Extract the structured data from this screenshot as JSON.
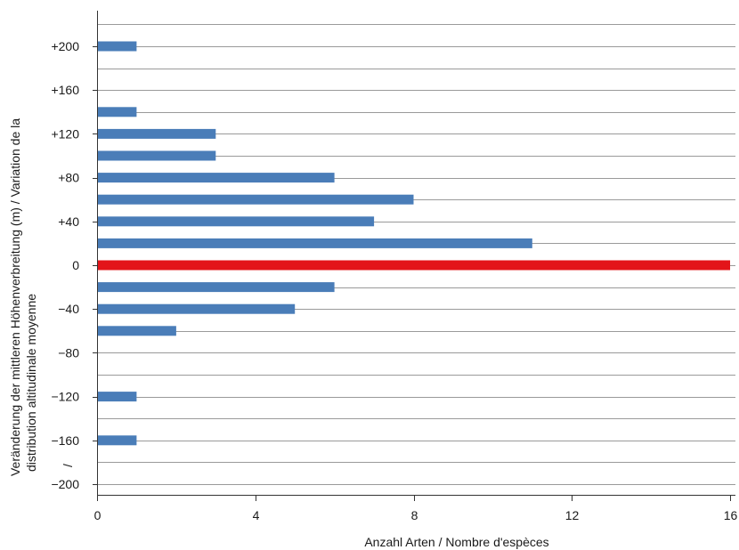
{
  "chart_data": {
    "type": "bar",
    "orientation": "horizontal",
    "xlabel": "Anzahl Arten / Nombre d'espèces",
    "ylabel_line1": "Veränderung der mittleren Höhenverbreitung (m) / Variation de la",
    "ylabel_line2": "distribution altitudinale moyenne",
    "ylabel_slash": "/",
    "xlim": [
      0,
      16
    ],
    "x_ticks": [
      {
        "value": 0,
        "label": "0"
      },
      {
        "value": 4,
        "label": "4"
      },
      {
        "value": 8,
        "label": "8"
      },
      {
        "value": 12,
        "label": "12"
      },
      {
        "value": 16,
        "label": "16"
      }
    ],
    "ylim": [
      -210,
      220
    ],
    "y_ticks": [
      {
        "value": 200,
        "label": "+200"
      },
      {
        "value": 160,
        "label": "+160"
      },
      {
        "value": 120,
        "label": "+120"
      },
      {
        "value": 80,
        "label": "+80"
      },
      {
        "value": 40,
        "label": "+40"
      },
      {
        "value": 0,
        "label": "0"
      },
      {
        "value": -40,
        "label": "−40"
      },
      {
        "value": -80,
        "label": "−80"
      },
      {
        "value": -120,
        "label": "−120"
      },
      {
        "value": -160,
        "label": "−160"
      },
      {
        "value": -200,
        "label": "−200"
      }
    ],
    "bins": [
      200,
      180,
      140,
      120,
      100,
      80,
      60,
      40,
      20,
      0,
      -20,
      -40,
      -60,
      -80,
      -100,
      -120,
      -140,
      -160,
      -180
    ],
    "values": [
      1,
      0,
      1,
      3,
      3,
      6,
      8,
      7,
      11,
      16,
      6,
      5,
      2,
      0,
      0,
      1,
      0,
      1,
      0
    ],
    "highlight_bin": 0,
    "grid": "horizontal",
    "colors": {
      "bar": "#4a7db8",
      "highlight": "#e3151a",
      "grid": "#9a9a9a",
      "axis": "#333333"
    }
  }
}
